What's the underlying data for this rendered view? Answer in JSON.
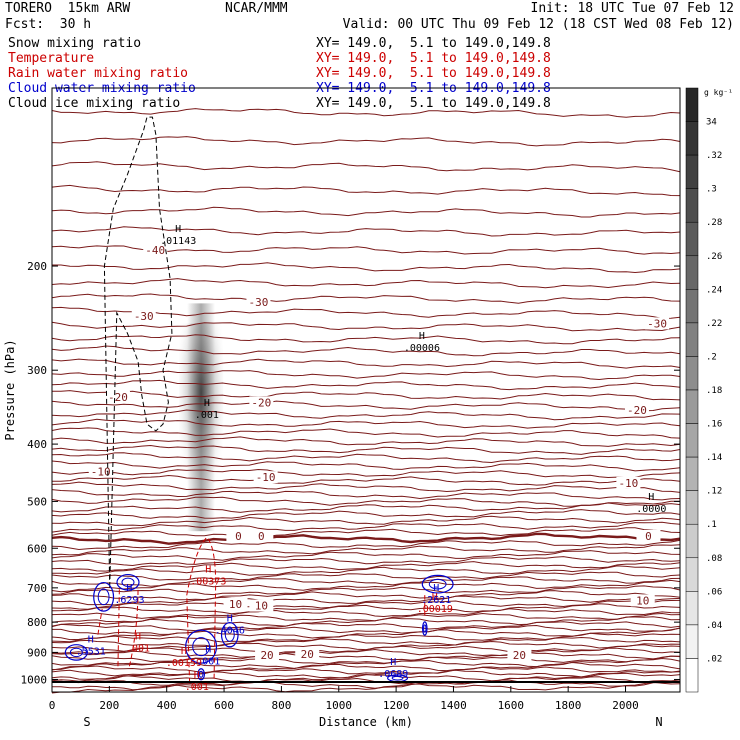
{
  "header": {
    "model": "TORERO  15km ARW",
    "forecast": "Fcst:  30 h",
    "center": "NCAR/MMM",
    "init": "Init: 18 UTC Tue 07 Feb 12",
    "valid": "Valid: 00 UTC Thu 09 Feb 12 (18 CST Wed 08 Feb 12)"
  },
  "fields": [
    {
      "name": "Snow mixing ratio",
      "color": "#000000",
      "xy": "XY= 149.0,  5.1 to 149.0,149.8"
    },
    {
      "name": "Temperature",
      "color": "#cc0000",
      "xy": "XY= 149.0,  5.1 to 149.0,149.8"
    },
    {
      "name": "Rain water mixing ratio",
      "color": "#cc0000",
      "xy": "XY= 149.0,  5.1 to 149.0,149.8"
    },
    {
      "name": "Cloud water mixing ratio",
      "color": "#0000cc",
      "xy": "XY= 149.0,  5.1 to 149.0,149.8"
    },
    {
      "name": "Cloud ice mixing ratio",
      "color": "#000000",
      "xy": "XY= 149.0,  5.1 to 149.0,149.8"
    }
  ],
  "colorbar": {
    "unit": "g kg⁻¹",
    "labels": [
      "34",
      ".32",
      ".3",
      ".28",
      ".26",
      ".24",
      ".22",
      ".2",
      ".18",
      ".16",
      ".14",
      ".12",
      ".1",
      ".08",
      ".06",
      ".04",
      ".02"
    ]
  },
  "chart_data": {
    "type": "contour",
    "xlabel": "Distance (km)",
    "ylabel": "Pressure (hPa)",
    "x_ticks": [
      0,
      200,
      400,
      600,
      800,
      1000,
      1200,
      1400,
      1600,
      1800,
      2000
    ],
    "y_ticks": [
      200,
      300,
      400,
      500,
      600,
      700,
      800,
      900,
      1000
    ],
    "xlim": [
      0,
      2190
    ],
    "ylim": [
      1050,
      100
    ],
    "y_scale": "log",
    "left_end": "S",
    "right_end": "N",
    "temperature_contours_C": [
      {
        "level": -40,
        "labels": [
          {
            "x": 360,
            "p": 188
          }
        ]
      },
      {
        "level": -30,
        "labels": [
          {
            "x": 320,
            "p": 243
          },
          {
            "x": 720,
            "p": 230
          },
          {
            "x": 2110,
            "p": 250
          }
        ]
      },
      {
        "level": -20,
        "labels": [
          {
            "x": 230,
            "p": 333
          },
          {
            "x": 730,
            "p": 340
          },
          {
            "x": 2040,
            "p": 350
          }
        ]
      },
      {
        "level": -10,
        "labels": [
          {
            "x": 170,
            "p": 445
          },
          {
            "x": 745,
            "p": 455
          },
          {
            "x": 2010,
            "p": 465
          }
        ]
      },
      {
        "level": 0,
        "labels": [
          {
            "x": 650,
            "p": 572
          },
          {
            "x": 730,
            "p": 572
          },
          {
            "x": 2080,
            "p": 572
          }
        ]
      },
      {
        "level": 10,
        "labels": [
          {
            "x": 640,
            "p": 745
          },
          {
            "x": 730,
            "p": 750
          },
          {
            "x": 2060,
            "p": 735
          }
        ]
      },
      {
        "level": 20,
        "labels": [
          {
            "x": 750,
            "p": 910
          },
          {
            "x": 890,
            "p": 905
          },
          {
            "x": 1630,
            "p": 910
          }
        ]
      }
    ],
    "maxima": [
      {
        "field": "Cloud ice mixing ratio",
        "value": ".01143",
        "x": 440,
        "p": 178
      },
      {
        "field": "Cloud ice mixing ratio",
        "value": ".001",
        "x": 540,
        "p": 350
      },
      {
        "field": "Snow mixing ratio",
        "value": ".00006",
        "x": 1290,
        "p": 270
      },
      {
        "field": "Snow mixing ratio",
        "value": ".0000",
        "x": 2090,
        "p": 505
      },
      {
        "field": "Rain water mixing ratio",
        "value": ".00373",
        "x": 545,
        "p": 670
      },
      {
        "field": "Rain water mixing ratio",
        "value": ".00019",
        "x": 1335,
        "p": 745
      },
      {
        "field": "Rain water mixing ratio",
        "value": ".001",
        "x": 300,
        "p": 870
      },
      {
        "field": "Rain water mixing ratio",
        "value": ".00159",
        "x": 460,
        "p": 920
      },
      {
        "field": "Rain water mixing ratio",
        "value": ".001",
        "x": 505,
        "p": 1010
      },
      {
        "field": "Cloud water mixing ratio",
        "value": ".6293",
        "x": 270,
        "p": 720
      },
      {
        "field": "Cloud water mixing ratio",
        "value": ".2621",
        "x": 1340,
        "p": 720
      },
      {
        "field": "Cloud water mixing ratio",
        "value": ".4046",
        "x": 620,
        "p": 810
      },
      {
        "field": "Cloud water mixing ratio",
        "value": ".5531",
        "x": 135,
        "p": 880
      },
      {
        "field": "Cloud water mixing ratio",
        "value": ".001",
        "x": 545,
        "p": 915
      },
      {
        "field": "Cloud water mixing ratio",
        "value": ".0689",
        "x": 1190,
        "p": 960
      }
    ],
    "shading": {
      "field": "Cloud ice mixing ratio",
      "x_center": 520,
      "p_top": 250,
      "p_bottom": 540,
      "max": 0.14
    },
    "freezing_level_hPa": 572
  }
}
